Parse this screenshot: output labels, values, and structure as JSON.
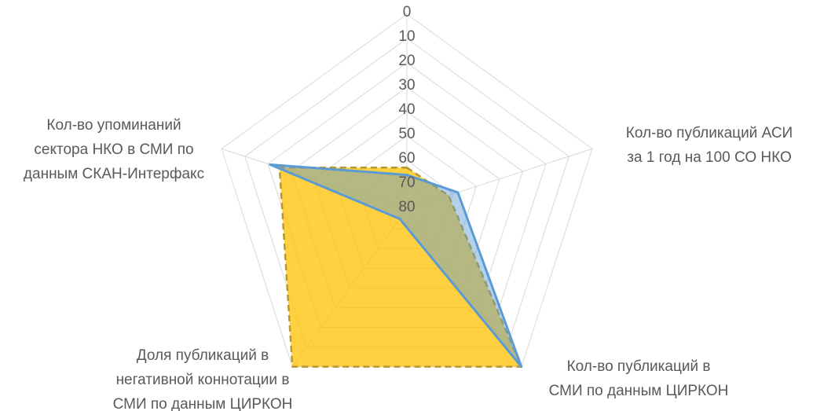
{
  "chart_data": {
    "type": "radar",
    "reverse": true,
    "categories": [
      null,
      "Кол-во публикаций АСИ\nза 1 год на 100 СО НКО",
      "Кол-во публикаций в\nСМИ по данным ЦИРКОН",
      "Доля публикаций в\nнегативной коннотации в\nСМИ по данным ЦИРКОН",
      "Кол-во упоминаний\nсектора НКО в СМИ по\nданным СКАН-Интерфакс"
    ],
    "series": [
      {
        "color": "#ffc000",
        "values": [
          63,
          62,
          0,
          0,
          25
        ]
      },
      {
        "color": "#5b9bd5",
        "values": [
          66,
          58,
          0,
          75,
          21
        ]
      }
    ],
    "ylim": [
      0,
      80
    ],
    "yticks": [
      0,
      10,
      20,
      30,
      40,
      50,
      60,
      70,
      80
    ],
    "grid": true
  }
}
